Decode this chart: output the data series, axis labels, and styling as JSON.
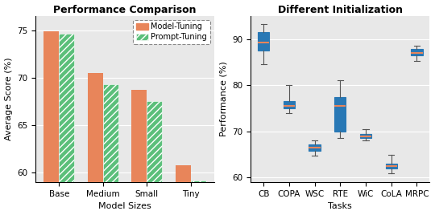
{
  "left": {
    "title": "Performance Comparison",
    "xlabel": "Model Sizes",
    "ylabel": "Average Score (%)",
    "categories": [
      "Base",
      "Medium",
      "Small",
      "Tiny"
    ],
    "model_tuning": [
      74.9,
      70.5,
      68.7,
      60.8
    ],
    "prompt_tuning": [
      74.6,
      69.3,
      67.5,
      59.2
    ],
    "bar_color_mt": "#E8855A",
    "bar_color_pt": "#5BBF7A",
    "ylim": [
      59,
      76.5
    ],
    "yticks": [
      60,
      65,
      70,
      75
    ],
    "legend_labels": [
      "Model-Tuning",
      "Prompt-Tuning"
    ]
  },
  "right": {
    "title": "Different Initialization",
    "xlabel": "Tasks",
    "ylabel": "Performance (%)",
    "categories": [
      "CB",
      "COPA",
      "WSC",
      "RTE",
      "WiC",
      "CoLA",
      "MRPC"
    ],
    "box_data": {
      "CB": {
        "median": 89.3,
        "q1": 87.5,
        "q3": 91.5,
        "whislo": 84.5,
        "whishi": 93.2
      },
      "COPA": {
        "median": 75.5,
        "q1": 75.0,
        "q3": 76.5,
        "whislo": 74.0,
        "whishi": 80.0
      },
      "WSC": {
        "median": 66.5,
        "q1": 65.8,
        "q3": 67.2,
        "whislo": 64.8,
        "whishi": 68.0
      },
      "RTE": {
        "median": 75.5,
        "q1": 70.0,
        "q3": 77.5,
        "whislo": 68.5,
        "whishi": 81.0
      },
      "WiC": {
        "median": 69.0,
        "q1": 68.5,
        "q3": 69.5,
        "whislo": 68.0,
        "whishi": 70.5
      },
      "CoLA": {
        "median": 62.5,
        "q1": 62.0,
        "q3": 63.0,
        "whislo": 61.0,
        "whishi": 65.0
      },
      "MRPC": {
        "median": 87.0,
        "q1": 86.5,
        "q3": 87.8,
        "whislo": 85.2,
        "whishi": 88.5
      }
    },
    "box_color": "#2878B5",
    "median_color": "#E8855A",
    "ylim": [
      59,
      95
    ],
    "yticks": [
      60,
      70,
      80,
      90
    ]
  },
  "bg_color": "#E8E8E8",
  "title_fontsize": 9,
  "label_fontsize": 8,
  "tick_fontsize": 7.5,
  "legend_fontsize": 7
}
